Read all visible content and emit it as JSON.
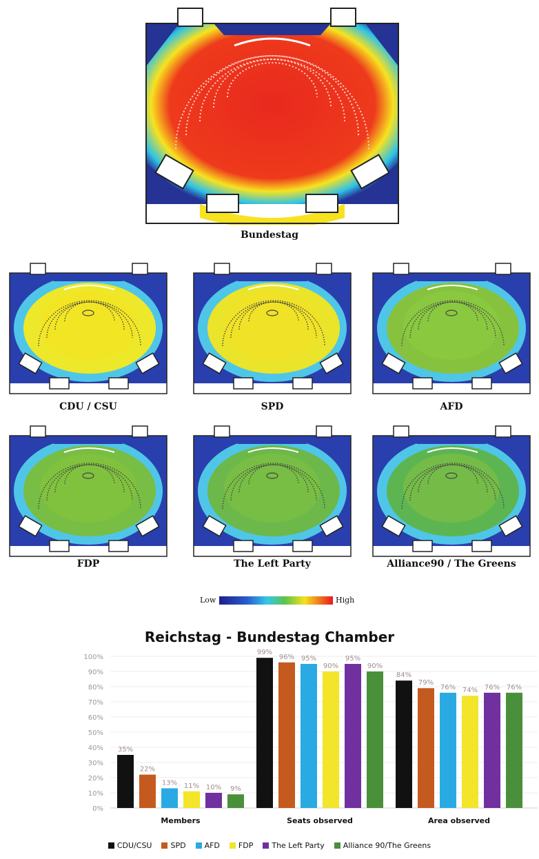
{
  "heatmaps": {
    "main_caption": "Bundestag",
    "panels": [
      {
        "caption": "CDU / CSU"
      },
      {
        "caption": "SPD"
      },
      {
        "caption": "AFD"
      },
      {
        "caption": "FDP"
      },
      {
        "caption": "The Left Party"
      },
      {
        "caption": "Alliance90 / The Greens"
      }
    ],
    "scale_low": "Low",
    "scale_high": "High"
  },
  "chart_data": {
    "type": "bar",
    "title": "Reichstag - Bundestag Chamber",
    "categories": [
      "Members",
      "Seats observed",
      "Area observed"
    ],
    "series": [
      {
        "name": "CDU/CSU",
        "color": "#111111",
        "values": [
          35,
          99,
          84
        ]
      },
      {
        "name": "SPD",
        "color": "#c55a1f",
        "values": [
          22,
          96,
          79
        ]
      },
      {
        "name": "AFD",
        "color": "#2aaae2",
        "values": [
          13,
          95,
          76
        ]
      },
      {
        "name": "FDP",
        "color": "#f2e52a",
        "values": [
          11,
          90,
          74
        ]
      },
      {
        "name": "The Left Party",
        "color": "#7030a0",
        "values": [
          10,
          95,
          76
        ]
      },
      {
        "name": "Alliance 90/The Greens",
        "color": "#4a8f3a",
        "values": [
          9,
          90,
          76
        ]
      }
    ],
    "value_labels": [
      [
        "35%",
        "99%",
        "84%"
      ],
      [
        "22%",
        "96%",
        "79%"
      ],
      [
        "13%",
        "95%",
        "76%"
      ],
      [
        "11%",
        "90%",
        "74%"
      ],
      [
        "10%",
        "95%",
        "76%"
      ],
      [
        "9%",
        "90%",
        "76%"
      ]
    ],
    "yticks": [
      "0%",
      "10%",
      "20%",
      "30%",
      "40%",
      "50%",
      "60%",
      "70%",
      "80%",
      "90%",
      "100%"
    ],
    "ylim": [
      0,
      100
    ],
    "legend_position": "bottom"
  }
}
